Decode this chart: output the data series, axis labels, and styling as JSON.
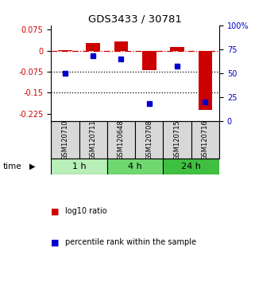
{
  "title": "GDS3433 / 30781",
  "samples": [
    "GSM120710",
    "GSM120711",
    "GSM120648",
    "GSM120708",
    "GSM120715",
    "GSM120716"
  ],
  "log10_ratio": [
    0.001,
    0.027,
    0.032,
    -0.068,
    0.013,
    -0.212
  ],
  "percentile_rank": [
    50,
    68,
    65,
    18,
    57,
    20
  ],
  "bar_color": "#cc0000",
  "dot_color": "#0000cc",
  "ylim_left": [
    -0.25,
    0.09
  ],
  "ylim_right": [
    0,
    100
  ],
  "yticks_left": [
    0.075,
    0.0,
    -0.075,
    -0.15,
    -0.225
  ],
  "ytick_labels_left": [
    "0.075",
    "0",
    "-0.075",
    "-0.15",
    "-0.225"
  ],
  "yticks_right": [
    100,
    75,
    50,
    25,
    0
  ],
  "ytick_labels_right": [
    "100%",
    "75",
    "50",
    "25",
    "0"
  ],
  "hline_y": 0.0,
  "dotted_lines": [
    -0.075,
    -0.15
  ],
  "time_groups": [
    {
      "label": "1 h",
      "samples": [
        0,
        1
      ],
      "color": "#b8eeb8"
    },
    {
      "label": "4 h",
      "samples": [
        2,
        3
      ],
      "color": "#70d870"
    },
    {
      "label": "24 h",
      "samples": [
        4,
        5
      ],
      "color": "#40c040"
    }
  ],
  "legend_bar_label": "log10 ratio",
  "legend_dot_label": "percentile rank within the sample",
  "bar_color_hex": "#cc0000",
  "dot_color_hex": "#0000cc",
  "background_color": "#ffffff"
}
